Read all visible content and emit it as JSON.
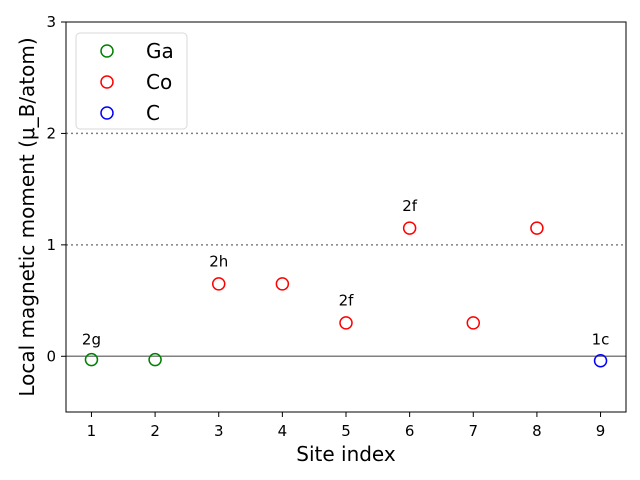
{
  "chart_data": {
    "type": "scatter",
    "title": "",
    "xlabel": "Site index",
    "ylabel": "Local magnetic moment (μ_B/atom)",
    "xlim": [
      0.6,
      9.4
    ],
    "ylim": [
      -0.5,
      3
    ],
    "x_ticks": [
      1,
      2,
      3,
      4,
      5,
      6,
      7,
      8,
      9
    ],
    "y_ticks": [
      0,
      1,
      2,
      3
    ],
    "legend_position": "top-left",
    "grid": false,
    "reference_lines": [
      {
        "y": 0,
        "style": "solid"
      },
      {
        "y": 1,
        "style": "dotted"
      },
      {
        "y": 2,
        "style": "dotted"
      }
    ],
    "series": [
      {
        "name": "Ga",
        "color": "#008000",
        "marker": "open-circle",
        "points": [
          {
            "x": 1,
            "y": -0.03
          },
          {
            "x": 2,
            "y": -0.03
          }
        ]
      },
      {
        "name": "Co",
        "color": "#ff0000",
        "marker": "open-circle",
        "points": [
          {
            "x": 3,
            "y": 0.65
          },
          {
            "x": 4,
            "y": 0.65
          },
          {
            "x": 5,
            "y": 0.3
          },
          {
            "x": 6,
            "y": 1.15
          },
          {
            "x": 7,
            "y": 0.3
          },
          {
            "x": 8,
            "y": 1.15
          }
        ]
      },
      {
        "name": "C",
        "color": "#0000ff",
        "marker": "open-circle",
        "points": [
          {
            "x": 9,
            "y": -0.04
          }
        ]
      }
    ],
    "annotations": [
      {
        "text": "2g",
        "x": 1,
        "y": 0.15
      },
      {
        "text": "2h",
        "x": 3,
        "y": 0.85
      },
      {
        "text": "2f",
        "x": 5,
        "y": 0.5
      },
      {
        "text": "2f",
        "x": 6,
        "y": 1.35
      },
      {
        "text": "1c",
        "x": 9,
        "y": 0.15
      }
    ]
  }
}
